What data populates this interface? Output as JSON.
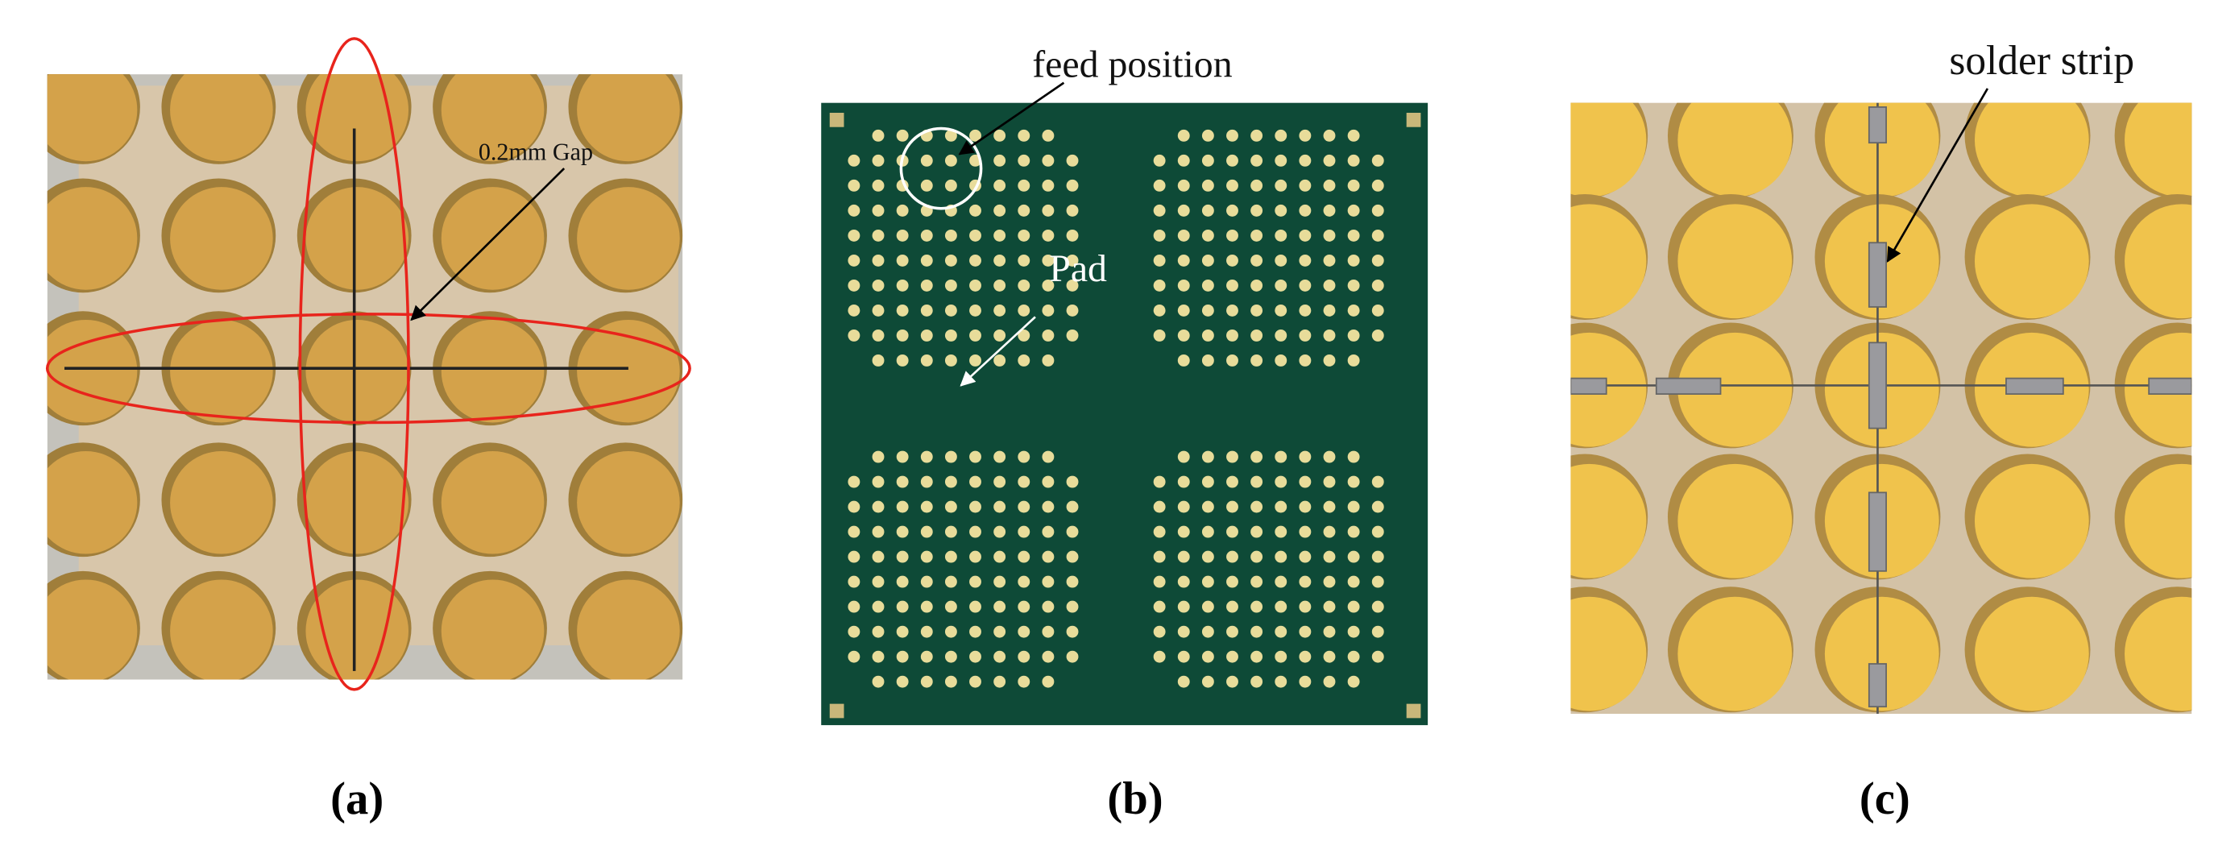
{
  "panels": [
    {
      "caption": "(a)",
      "annotations": [
        "0.2mm Gap"
      ]
    },
    {
      "caption": "(b)",
      "annotations": [
        "feed position",
        "Pad"
      ]
    },
    {
      "caption": "(c)",
      "annotations": [
        "solder strip"
      ]
    }
  ]
}
